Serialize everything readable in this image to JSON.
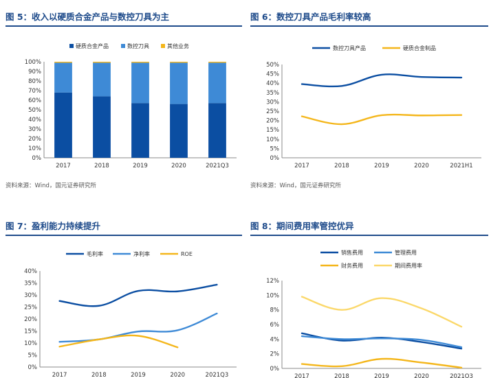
{
  "figures": [
    {
      "title": "图 5：收入以硬质合金产品与数控刀具为主",
      "source": "资料来源：Wind，国元证券研究所"
    },
    {
      "title": "图 6：数控刀具产品毛利率较高",
      "source": "资料来源：Wind，国元证券研究所"
    },
    {
      "title": "图 7：盈利能力持续提升",
      "source": ""
    },
    {
      "title": "图 8：期间费用率管控优异",
      "source": ""
    }
  ],
  "colors": {
    "dark_blue": "#0b4ea2",
    "mid_blue": "#3e8ad6",
    "yellow": "#f4b61a",
    "light_yellow": "#fbd86a",
    "title_blue": "#1d4a8a"
  },
  "chart_data": [
    {
      "type": "bar",
      "stacked": true,
      "categories": [
        "2017",
        "2018",
        "2019",
        "2020",
        "2021Q3"
      ],
      "series": [
        {
          "name": "硬质合金产品",
          "color": "#0b4ea2",
          "values": [
            68,
            64,
            57,
            56,
            57
          ]
        },
        {
          "name": "数控刀具",
          "color": "#3e8ad6",
          "values": [
            31,
            35,
            42,
            43,
            42
          ]
        },
        {
          "name": "其他业务",
          "color": "#f4b61a",
          "values": [
            1,
            1,
            1,
            1,
            1
          ]
        }
      ],
      "ylim": [
        0,
        100
      ],
      "yticks": [
        "0%",
        "10%",
        "20%",
        "30%",
        "40%",
        "50%",
        "60%",
        "70%",
        "80%",
        "90%",
        "100%"
      ],
      "legend": "top"
    },
    {
      "type": "line",
      "categories": [
        "2017",
        "2018",
        "2019",
        "2020",
        "2021H1"
      ],
      "series": [
        {
          "name": "数控刀具产品",
          "color": "#0b4ea2",
          "values": [
            39.5,
            38.5,
            44.5,
            43.3,
            43.0
          ]
        },
        {
          "name": "硬质合金制品",
          "color": "#f4b61a",
          "values": [
            22.2,
            18.0,
            22.8,
            22.7,
            22.9
          ]
        }
      ],
      "ylim": [
        0,
        50
      ],
      "yticks": [
        "0%",
        "5%",
        "10%",
        "15%",
        "20%",
        "25%",
        "30%",
        "35%",
        "40%",
        "45%",
        "50%"
      ],
      "legend": "top"
    },
    {
      "type": "line",
      "categories": [
        "2017",
        "2018",
        "2019",
        "2020",
        "2021Q3"
      ],
      "series": [
        {
          "name": "毛利率",
          "color": "#0b4ea2",
          "values": [
            27.5,
            25.5,
            31.7,
            31.5,
            34.3
          ]
        },
        {
          "name": "净利率",
          "color": "#3e8ad6",
          "values": [
            10.5,
            11.5,
            14.8,
            15.3,
            22.3
          ]
        },
        {
          "name": "ROE",
          "color": "#f4b61a",
          "values": [
            8.5,
            11.5,
            13.0,
            8.2,
            null
          ]
        }
      ],
      "ylim": [
        0,
        40
      ],
      "yticks": [
        "0%",
        "5%",
        "10%",
        "15%",
        "20%",
        "25%",
        "30%",
        "35%",
        "40%"
      ],
      "legend": "top"
    },
    {
      "type": "line",
      "categories": [
        "2017",
        "2018",
        "2019",
        "2020",
        "2021Q3"
      ],
      "series": [
        {
          "name": "销售费用",
          "color": "#0b4ea2",
          "values": [
            4.8,
            3.8,
            4.2,
            3.6,
            2.7
          ]
        },
        {
          "name": "管理费用",
          "color": "#3e8ad6",
          "values": [
            4.4,
            4.0,
            4.1,
            3.9,
            2.9
          ]
        },
        {
          "name": "财务费用",
          "color": "#f4b61a",
          "values": [
            0.6,
            0.3,
            1.3,
            0.8,
            0.1
          ]
        },
        {
          "name": "期间费用率",
          "color": "#fbd86a",
          "values": [
            9.8,
            8.0,
            9.6,
            8.2,
            5.7
          ]
        }
      ],
      "ylim": [
        0,
        12
      ],
      "yticks": [
        "0%",
        "2%",
        "4%",
        "6%",
        "8%",
        "10%",
        "12%"
      ],
      "legend": "top"
    }
  ]
}
